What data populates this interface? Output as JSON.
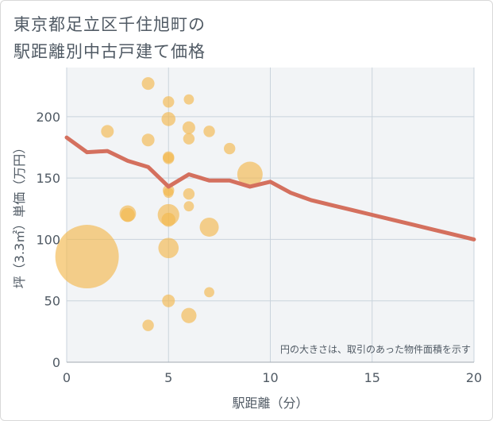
{
  "chart_data": {
    "type": "scatter",
    "title_line1": "東京都足立区千住旭町の",
    "title_line2": "駅距離別中古戸建て価格",
    "xlabel": "駅距離（分）",
    "ylabel": "坪（3.3㎡）単価（万円）",
    "xlim": [
      0,
      20
    ],
    "ylim": [
      0,
      240
    ],
    "x_ticks": [
      "0",
      "5",
      "10",
      "15",
      "20"
    ],
    "y_ticks": [
      "0",
      "50",
      "100",
      "150",
      "200"
    ],
    "grid": true,
    "note": "円の大きさは、取引のあった物件面積を示す",
    "colors": {
      "bubble": "#f2b84f",
      "line": "#d4705e",
      "grid": "#c9d3dc",
      "plot_bg": "#f2f4f6"
    },
    "bubbles": [
      {
        "x": 1,
        "y": 86,
        "size": 5.0
      },
      {
        "x": 2,
        "y": 188,
        "size": 1.0
      },
      {
        "x": 3,
        "y": 121,
        "size": 1.3
      },
      {
        "x": 3,
        "y": 120,
        "size": 1.1
      },
      {
        "x": 4,
        "y": 227,
        "size": 1.0
      },
      {
        "x": 4,
        "y": 181,
        "size": 1.0
      },
      {
        "x": 4,
        "y": 30,
        "size": 0.9
      },
      {
        "x": 5,
        "y": 212,
        "size": 0.9
      },
      {
        "x": 5,
        "y": 198,
        "size": 1.1
      },
      {
        "x": 5,
        "y": 167,
        "size": 0.9
      },
      {
        "x": 5,
        "y": 166,
        "size": 0.9
      },
      {
        "x": 5,
        "y": 140,
        "size": 0.9
      },
      {
        "x": 5,
        "y": 138,
        "size": 0.8
      },
      {
        "x": 5,
        "y": 120,
        "size": 1.7
      },
      {
        "x": 5,
        "y": 116,
        "size": 1.1
      },
      {
        "x": 5,
        "y": 93,
        "size": 1.6
      },
      {
        "x": 5,
        "y": 50,
        "size": 1.0
      },
      {
        "x": 6,
        "y": 214,
        "size": 0.8
      },
      {
        "x": 6,
        "y": 191,
        "size": 1.0
      },
      {
        "x": 6,
        "y": 182,
        "size": 0.9
      },
      {
        "x": 6,
        "y": 137,
        "size": 0.9
      },
      {
        "x": 6,
        "y": 127,
        "size": 0.8
      },
      {
        "x": 6,
        "y": 38,
        "size": 1.2
      },
      {
        "x": 7,
        "y": 188,
        "size": 0.9
      },
      {
        "x": 7,
        "y": 110,
        "size": 1.5
      },
      {
        "x": 7,
        "y": 57,
        "size": 0.8
      },
      {
        "x": 8,
        "y": 174,
        "size": 0.9
      },
      {
        "x": 9,
        "y": 153,
        "size": 2.0
      }
    ],
    "trend_line": {
      "x": [
        0,
        1,
        2,
        3,
        4,
        5,
        6,
        7,
        8,
        9,
        10,
        11,
        12,
        13,
        14,
        15,
        16,
        17,
        18,
        19,
        20
      ],
      "y": [
        183,
        171,
        172,
        164,
        159,
        143,
        153,
        148,
        148,
        143,
        147,
        138,
        132,
        128,
        124,
        120,
        116,
        112,
        108,
        104,
        100
      ]
    }
  }
}
